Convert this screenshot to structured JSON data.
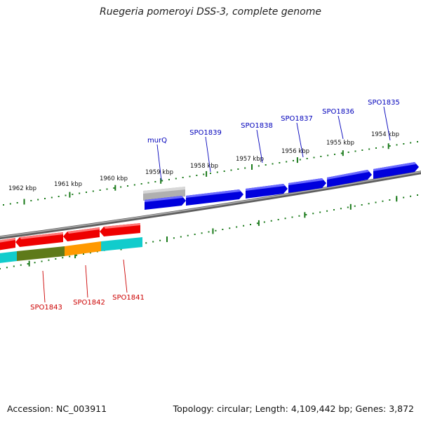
{
  "title": "Ruegeria pomeroyi DSS-3, complete genome",
  "footer": {
    "accession": "Accession: NC_003911",
    "summary": "Topology: circular; Length: 4,109,442 bp; Genes: 3,872"
  },
  "colors": {
    "backbone": "#7f7f7f",
    "ticks": "#1a7a1a",
    "forward_gene": "#0000dd",
    "reverse_gene": "#ee0000",
    "rna_gene": "#b0b0b0",
    "cog_cyan": "#11cccc",
    "cog_olive": "#5e7a1a",
    "cog_orange": "#ff9900",
    "forward_label": "#0000bb",
    "reverse_label": "#cc0000"
  },
  "ticks": [
    {
      "label": "1954 kbp"
    },
    {
      "label": "1955 kbp"
    },
    {
      "label": "1956 kbp"
    },
    {
      "label": "1957 kbp"
    },
    {
      "label": "1958 kbp"
    },
    {
      "label": "1959 kbp"
    },
    {
      "label": "1960 kbp"
    },
    {
      "label": "1961 kbp"
    },
    {
      "label": "1962 kbp"
    }
  ],
  "forward_genes": [
    {
      "label": "SPO1835"
    },
    {
      "label": "SPO1836"
    },
    {
      "label": "SPO1837"
    },
    {
      "label": "SPO1838"
    },
    {
      "label": "SPO1839"
    },
    {
      "label": "murQ"
    }
  ],
  "reverse_genes": [
    {
      "label": "SPO1841"
    },
    {
      "label": "SPO1842"
    },
    {
      "label": "SPO1843"
    }
  ]
}
